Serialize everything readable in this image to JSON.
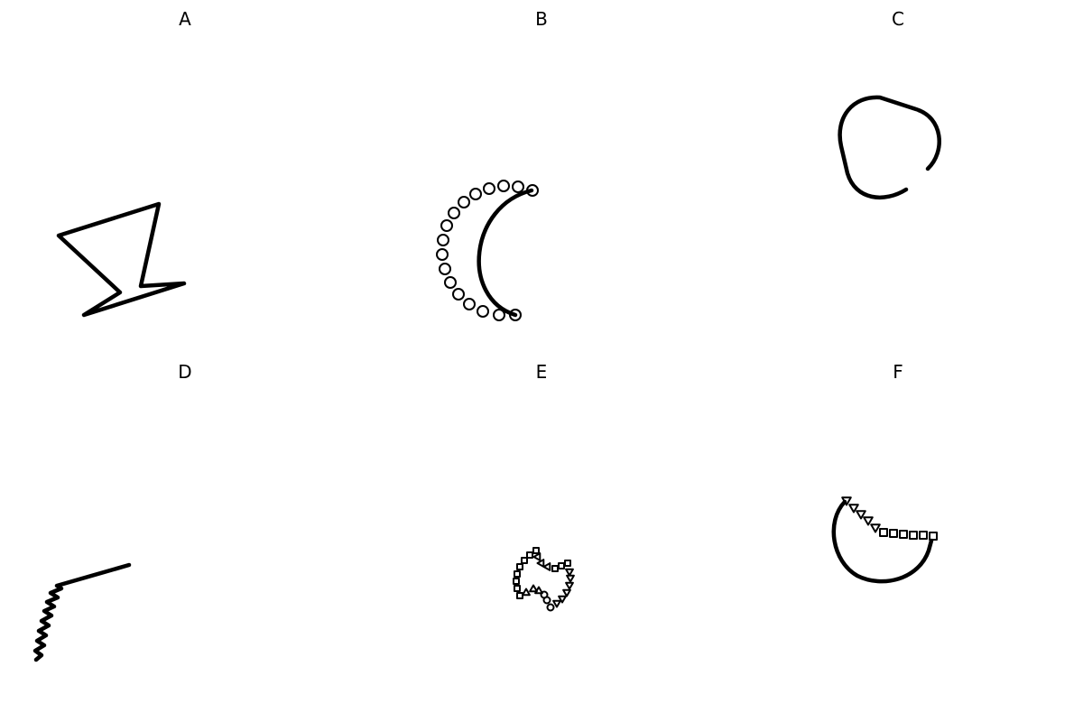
{
  "panels": [
    {
      "id": "A",
      "label": "A"
    },
    {
      "id": "B",
      "label": "B"
    },
    {
      "id": "C",
      "label": "C"
    },
    {
      "id": "D",
      "label": "D"
    },
    {
      "id": "E",
      "label": "E"
    },
    {
      "id": "F",
      "label": "F"
    }
  ],
  "colors": {
    "ink": "#000000",
    "background": "#ffffff"
  }
}
